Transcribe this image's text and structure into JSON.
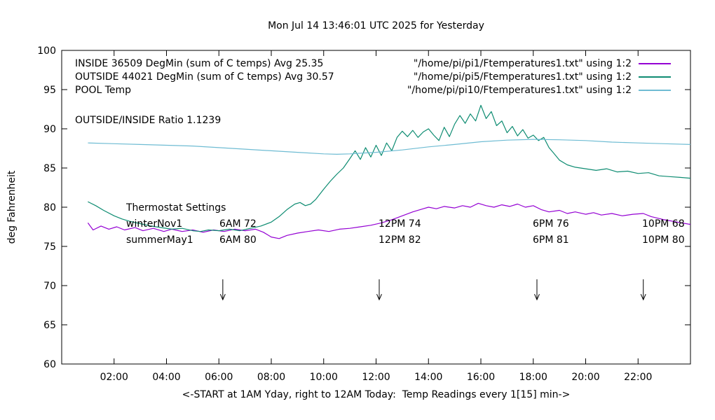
{
  "title": "Mon Jul 14 13:46:01 UTC 2025 for Yesterday",
  "ylabel": "deg Fahrenheit",
  "xlabel": "<-START at 1AM Yday, right to 12AM Today:  Temp Readings every 1[15] min->",
  "ratio_text": "OUTSIDE/INSIDE Ratio 1.1239",
  "legend": {
    "left": [
      "INSIDE 36509 DegMin (sum of C temps) Avg 25.35",
      "OUTSIDE 44021 DegMin (sum of C temps) Avg 30.57",
      "POOL Temp"
    ],
    "right": [
      {
        "label": "\"/home/pi/pi1/Ftemperatures1.txt\" using 1:2",
        "color": "#9400d3"
      },
      {
        "label": "\"/home/pi/pi5/Ftemperatures1.txt\" using 1:2",
        "color": "#0e8c72"
      },
      {
        "label": "\"/home/pi/pi10/Ftemperatures1.txt\" using 1:2",
        "color": "#6fbcd3"
      }
    ]
  },
  "thermostat": {
    "title": "Thermostat Settings",
    "rows": [
      {
        "name": "winterNov1",
        "settings": [
          "6AM 72",
          "12PM 74",
          "6PM 76",
          "10PM 68"
        ]
      },
      {
        "name": "summerMay1",
        "settings": [
          "6AM 80",
          "12PM 82",
          "6PM 81",
          "10PM 80"
        ]
      }
    ]
  },
  "chart_data": {
    "type": "line",
    "title": "Mon Jul 14 13:46:01 UTC 2025 for Yesterday",
    "xlabel": "<-START at 1AM Yday, right to 12AM Today:  Temp Readings every 1[15] min->",
    "ylabel": "deg Fahrenheit",
    "x_range": [
      0,
      24
    ],
    "y_range": [
      60,
      100
    ],
    "grid": false,
    "y_ticks": [
      60,
      65,
      70,
      75,
      80,
      85,
      90,
      95,
      100
    ],
    "x_ticks": [
      {
        "v": 2,
        "label": "02:00"
      },
      {
        "v": 4,
        "label": "04:00"
      },
      {
        "v": 6,
        "label": "06:00"
      },
      {
        "v": 8,
        "label": "08:00"
      },
      {
        "v": 10,
        "label": "10:00"
      },
      {
        "v": 12,
        "label": "12:00"
      },
      {
        "v": 14,
        "label": "14:00"
      },
      {
        "v": 16,
        "label": "16:00"
      },
      {
        "v": 18,
        "label": "18:00"
      },
      {
        "v": 20,
        "label": "20:00"
      },
      {
        "v": 22,
        "label": "22:00"
      }
    ],
    "arrows_x": [
      6.15,
      12.12,
      18.14,
      22.2
    ],
    "arrow_from": 70.8,
    "arrow_to": 68.2,
    "series": [
      {
        "name": "INSIDE",
        "color": "#9400d3",
        "points": [
          [
            1,
            78.0
          ],
          [
            1.2,
            77.1
          ],
          [
            1.5,
            77.6
          ],
          [
            1.8,
            77.2
          ],
          [
            2.1,
            77.5
          ],
          [
            2.4,
            77.1
          ],
          [
            2.8,
            77.4
          ],
          [
            3.1,
            77.0
          ],
          [
            3.5,
            77.3
          ],
          [
            3.9,
            76.9
          ],
          [
            4.2,
            77.2
          ],
          [
            4.6,
            76.9
          ],
          [
            5.0,
            77.1
          ],
          [
            5.4,
            76.8
          ],
          [
            5.8,
            77.1
          ],
          [
            6.2,
            76.9
          ],
          [
            6.6,
            77.2
          ],
          [
            7.0,
            77.0
          ],
          [
            7.4,
            77.2
          ],
          [
            7.7,
            76.8
          ],
          [
            8.0,
            76.2
          ],
          [
            8.3,
            76.0
          ],
          [
            8.6,
            76.4
          ],
          [
            9.0,
            76.7
          ],
          [
            9.4,
            76.9
          ],
          [
            9.8,
            77.1
          ],
          [
            10.2,
            76.9
          ],
          [
            10.6,
            77.2
          ],
          [
            11.0,
            77.3
          ],
          [
            11.4,
            77.5
          ],
          [
            11.8,
            77.7
          ],
          [
            12.2,
            78.0
          ],
          [
            12.6,
            78.4
          ],
          [
            13.0,
            78.9
          ],
          [
            13.4,
            79.4
          ],
          [
            13.8,
            79.8
          ],
          [
            14.0,
            80.0
          ],
          [
            14.3,
            79.8
          ],
          [
            14.6,
            80.1
          ],
          [
            15.0,
            79.9
          ],
          [
            15.3,
            80.2
          ],
          [
            15.6,
            80.0
          ],
          [
            15.9,
            80.5
          ],
          [
            16.2,
            80.2
          ],
          [
            16.5,
            80.0
          ],
          [
            16.8,
            80.3
          ],
          [
            17.1,
            80.1
          ],
          [
            17.4,
            80.4
          ],
          [
            17.7,
            80.0
          ],
          [
            18.0,
            80.2
          ],
          [
            18.3,
            79.7
          ],
          [
            18.6,
            79.4
          ],
          [
            19.0,
            79.6
          ],
          [
            19.3,
            79.2
          ],
          [
            19.6,
            79.4
          ],
          [
            20.0,
            79.1
          ],
          [
            20.3,
            79.3
          ],
          [
            20.6,
            79.0
          ],
          [
            21.0,
            79.2
          ],
          [
            21.4,
            78.9
          ],
          [
            21.8,
            79.1
          ],
          [
            22.2,
            79.2
          ],
          [
            22.5,
            78.8
          ],
          [
            23.0,
            78.4
          ],
          [
            23.5,
            78.1
          ],
          [
            24.0,
            77.8
          ]
        ]
      },
      {
        "name": "OUTSIDE",
        "color": "#0e8c72",
        "points": [
          [
            1,
            80.7
          ],
          [
            1.3,
            80.2
          ],
          [
            1.6,
            79.6
          ],
          [
            2.0,
            78.9
          ],
          [
            2.3,
            78.5
          ],
          [
            2.6,
            78.2
          ],
          [
            3.0,
            77.9
          ],
          [
            3.4,
            77.6
          ],
          [
            3.8,
            77.4
          ],
          [
            4.2,
            77.2
          ],
          [
            4.6,
            77.3
          ],
          [
            5.0,
            77.0
          ],
          [
            5.3,
            76.9
          ],
          [
            5.6,
            77.1
          ],
          [
            6.0,
            77.0
          ],
          [
            6.4,
            77.2
          ],
          [
            6.8,
            77.0
          ],
          [
            7.2,
            77.3
          ],
          [
            7.6,
            77.6
          ],
          [
            8.0,
            78.1
          ],
          [
            8.3,
            78.8
          ],
          [
            8.6,
            79.7
          ],
          [
            8.9,
            80.4
          ],
          [
            9.1,
            80.6
          ],
          [
            9.3,
            80.2
          ],
          [
            9.5,
            80.4
          ],
          [
            9.7,
            81.0
          ],
          [
            10.0,
            82.3
          ],
          [
            10.25,
            83.3
          ],
          [
            10.5,
            84.2
          ],
          [
            10.75,
            85.0
          ],
          [
            11.0,
            86.2
          ],
          [
            11.2,
            87.2
          ],
          [
            11.4,
            86.1
          ],
          [
            11.6,
            87.6
          ],
          [
            11.8,
            86.4
          ],
          [
            12.0,
            87.9
          ],
          [
            12.2,
            86.6
          ],
          [
            12.4,
            88.2
          ],
          [
            12.6,
            87.2
          ],
          [
            12.8,
            88.9
          ],
          [
            13.0,
            89.7
          ],
          [
            13.2,
            89.0
          ],
          [
            13.4,
            89.8
          ],
          [
            13.6,
            88.9
          ],
          [
            13.8,
            89.6
          ],
          [
            14.0,
            90.0
          ],
          [
            14.2,
            89.2
          ],
          [
            14.4,
            88.5
          ],
          [
            14.6,
            90.2
          ],
          [
            14.8,
            89.0
          ],
          [
            15.0,
            90.6
          ],
          [
            15.2,
            91.7
          ],
          [
            15.4,
            90.7
          ],
          [
            15.6,
            91.9
          ],
          [
            15.8,
            91.0
          ],
          [
            16.0,
            93.0
          ],
          [
            16.2,
            91.3
          ],
          [
            16.4,
            92.2
          ],
          [
            16.6,
            90.4
          ],
          [
            16.8,
            91.0
          ],
          [
            17.0,
            89.5
          ],
          [
            17.2,
            90.3
          ],
          [
            17.4,
            89.1
          ],
          [
            17.6,
            89.9
          ],
          [
            17.8,
            88.8
          ],
          [
            18.0,
            89.2
          ],
          [
            18.2,
            88.5
          ],
          [
            18.4,
            88.9
          ],
          [
            18.6,
            87.6
          ],
          [
            18.8,
            86.8
          ],
          [
            19.0,
            86.0
          ],
          [
            19.3,
            85.4
          ],
          [
            19.6,
            85.1
          ],
          [
            20.0,
            84.9
          ],
          [
            20.4,
            84.7
          ],
          [
            20.8,
            84.9
          ],
          [
            21.2,
            84.5
          ],
          [
            21.6,
            84.6
          ],
          [
            22.0,
            84.3
          ],
          [
            22.4,
            84.4
          ],
          [
            22.8,
            84.0
          ],
          [
            23.2,
            83.9
          ],
          [
            23.6,
            83.8
          ],
          [
            24.0,
            83.7
          ]
        ]
      },
      {
        "name": "POOL",
        "color": "#6fbcd3",
        "points": [
          [
            1,
            88.2
          ],
          [
            2,
            88.1
          ],
          [
            3,
            88.0
          ],
          [
            4,
            87.9
          ],
          [
            5,
            87.8
          ],
          [
            6,
            87.6
          ],
          [
            7,
            87.4
          ],
          [
            8,
            87.2
          ],
          [
            9,
            87.0
          ],
          [
            10,
            86.8
          ],
          [
            10.5,
            86.75
          ],
          [
            11,
            86.8
          ],
          [
            12,
            87.0
          ],
          [
            13,
            87.3
          ],
          [
            14,
            87.7
          ],
          [
            15,
            88.0
          ],
          [
            16,
            88.35
          ],
          [
            17,
            88.55
          ],
          [
            18,
            88.65
          ],
          [
            19,
            88.6
          ],
          [
            20,
            88.5
          ],
          [
            21,
            88.3
          ],
          [
            22,
            88.2
          ],
          [
            23,
            88.1
          ],
          [
            24,
            88.0
          ]
        ]
      }
    ]
  }
}
